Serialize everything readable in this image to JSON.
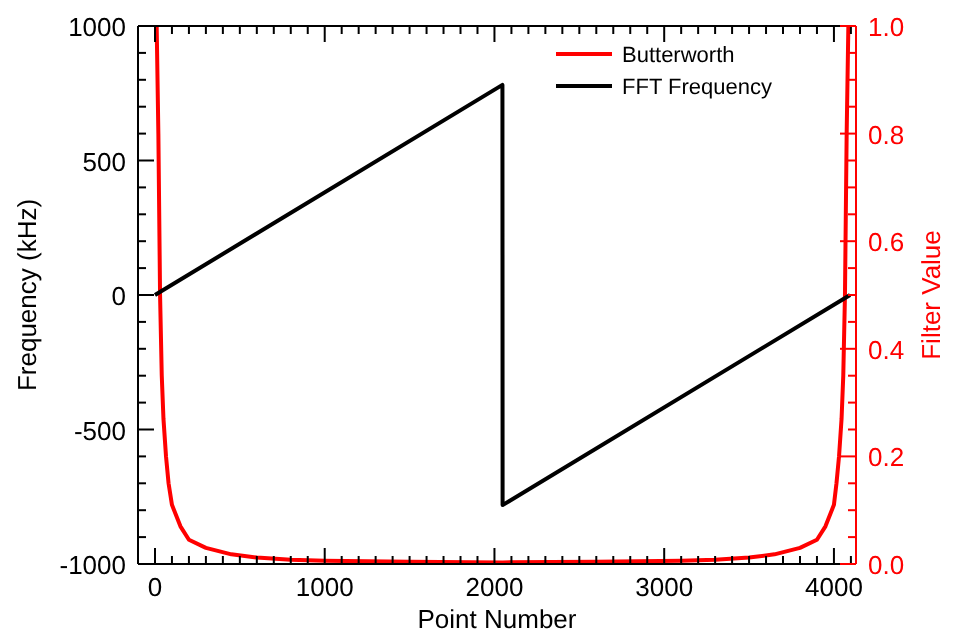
{
  "chart_data": {
    "type": "line",
    "xlabel": "Point Number",
    "ylabel": "Frequency (kHz)",
    "y2label": "Filter Value",
    "xlim": [
      -100,
      4130
    ],
    "xticks": [
      0,
      {
        "value": 100,
        "label": null
      },
      {
        "value": 200,
        "label": null
      },
      {
        "value": 300,
        "label": null
      },
      {
        "value": 400,
        "label": null
      },
      {
        "value": 500,
        "label": null
      },
      {
        "value": 600,
        "label": null
      },
      {
        "value": 700,
        "label": null
      },
      {
        "value": 800,
        "label": null
      },
      {
        "value": 900,
        "label": null
      },
      1000,
      {
        "value": 1100,
        "label": null
      },
      {
        "value": 1200,
        "label": null
      },
      {
        "value": 1300,
        "label": null
      },
      {
        "value": 1400,
        "label": null
      },
      {
        "value": 1500,
        "label": null
      },
      {
        "value": 1600,
        "label": null
      },
      {
        "value": 1700,
        "label": null
      },
      {
        "value": 1800,
        "label": null
      },
      {
        "value": 1900,
        "label": null
      },
      2000,
      {
        "value": 2100,
        "label": null
      },
      {
        "value": 2200,
        "label": null
      },
      {
        "value": 2300,
        "label": null
      },
      {
        "value": 2400,
        "label": null
      },
      {
        "value": 2500,
        "label": null
      },
      {
        "value": 2600,
        "label": null
      },
      {
        "value": 2700,
        "label": null
      },
      {
        "value": 2800,
        "label": null
      },
      {
        "value": 2900,
        "label": null
      },
      3000,
      {
        "value": 3100,
        "label": null
      },
      {
        "value": 3200,
        "label": null
      },
      {
        "value": 3300,
        "label": null
      },
      {
        "value": 3400,
        "label": null
      },
      {
        "value": 3500,
        "label": null
      },
      {
        "value": 3600,
        "label": null
      },
      {
        "value": 3700,
        "label": null
      },
      {
        "value": 3800,
        "label": null
      },
      {
        "value": 3900,
        "label": null
      },
      4000,
      {
        "value": 4100,
        "label": null
      }
    ],
    "ylim": [
      -1000,
      1000
    ],
    "yticks": [
      -1000,
      {
        "value": -900,
        "label": null
      },
      {
        "value": -800,
        "label": null
      },
      {
        "value": -700,
        "label": null
      },
      {
        "value": -600,
        "label": null
      },
      -500,
      {
        "value": -400,
        "label": null
      },
      {
        "value": -300,
        "label": null
      },
      {
        "value": -200,
        "label": null
      },
      {
        "value": -100,
        "label": null
      },
      0,
      {
        "value": 100,
        "label": null
      },
      {
        "value": 200,
        "label": null
      },
      {
        "value": 300,
        "label": null
      },
      {
        "value": 400,
        "label": null
      },
      500,
      {
        "value": 600,
        "label": null
      },
      {
        "value": 700,
        "label": null
      },
      {
        "value": 800,
        "label": null
      },
      {
        "value": 900,
        "label": null
      },
      1000
    ],
    "y2lim": [
      0,
      1
    ],
    "y2ticks": [
      {
        "value": 0,
        "label": "0.0"
      },
      {
        "value": 0.05,
        "label": null
      },
      {
        "value": 0.1,
        "label": null
      },
      {
        "value": 0.15,
        "label": null
      },
      0.2,
      {
        "value": 0.25,
        "label": null
      },
      {
        "value": 0.3,
        "label": null
      },
      {
        "value": 0.35,
        "label": null
      },
      0.4,
      {
        "value": 0.45,
        "label": null
      },
      {
        "value": 0.5,
        "label": null
      },
      {
        "value": 0.55,
        "label": null
      },
      0.6,
      {
        "value": 0.65,
        "label": null
      },
      {
        "value": 0.7,
        "label": null
      },
      {
        "value": 0.75,
        "label": null
      },
      0.8,
      {
        "value": 0.85,
        "label": null
      },
      {
        "value": 0.9,
        "label": null
      },
      {
        "value": 0.95,
        "label": null
      },
      {
        "value": 1,
        "label": "1.0"
      }
    ],
    "legend": "top right",
    "grid": false,
    "series": [
      {
        "name": "Butterworth",
        "color": "#ff0000",
        "axis": "y2",
        "x": [
          10,
          20,
          30,
          40,
          50,
          65,
          80,
          100,
          150,
          200,
          300,
          450,
          600,
          800,
          1000,
          1500,
          2048,
          2600,
          3100,
          3300,
          3500,
          3650,
          3800,
          3900,
          3950,
          4000,
          4015,
          4030,
          4045,
          4055,
          4065,
          4075,
          4085
        ],
        "values": [
          1,
          0.8,
          0.5,
          0.35,
          0.27,
          0.2,
          0.15,
          0.11,
          0.07,
          0.045,
          0.03,
          0.018,
          0.012,
          0.008,
          0.006,
          0.004,
          0.003,
          0.004,
          0.006,
          0.008,
          0.012,
          0.018,
          0.03,
          0.045,
          0.07,
          0.11,
          0.15,
          0.2,
          0.27,
          0.35,
          0.5,
          0.8,
          1
        ]
      },
      {
        "name": "FFT Frequency",
        "color": "#000000",
        "x": [
          0,
          2047,
          2048,
          4095
        ],
        "values": [
          0,
          781,
          -781,
          0
        ]
      }
    ]
  }
}
